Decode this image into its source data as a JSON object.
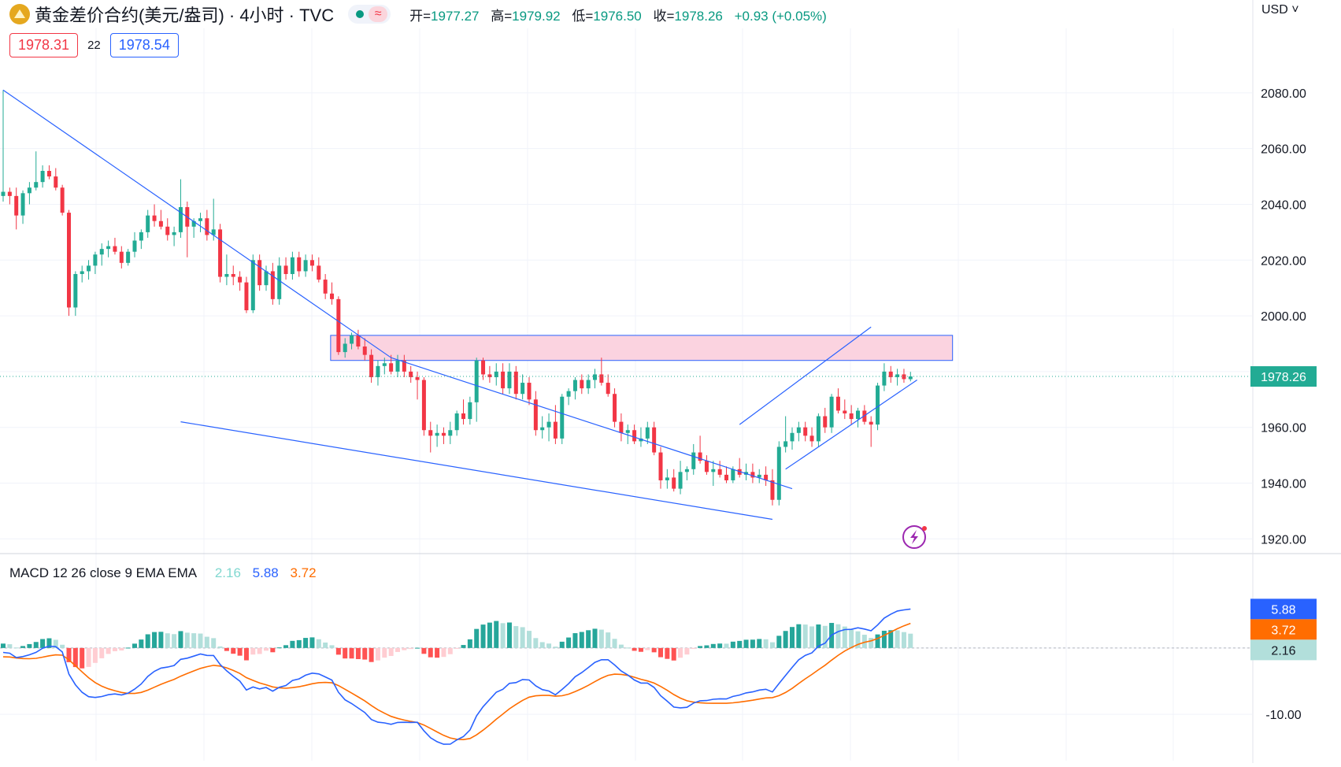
{
  "header": {
    "symbol_title": "黄金差价合约(美元/盎司) · 4小时 · TVC",
    "wave_glyph": "≈",
    "ohlc": [
      {
        "key": "开=",
        "value": "1977.27"
      },
      {
        "key": "高=",
        "value": "1979.92"
      },
      {
        "key": "低=",
        "value": "1976.50"
      },
      {
        "key": "收=",
        "value": "1978.26"
      },
      {
        "key": "",
        "value": "+0.93 (+0.05%)"
      }
    ],
    "sell_price": "1978.31",
    "spread": "22",
    "buy_price": "1978.54",
    "currency": "USD ˅"
  },
  "colors": {
    "up": "#22ab94",
    "down": "#f23645",
    "trendline": "#2962ff",
    "zone_fill": "#fbd3e0",
    "macd_line": "#2962ff",
    "signal_line": "#ff6d00",
    "hist_up_strong": "#26a69a",
    "hist_up_weak": "#b2dfdb",
    "hist_down_strong": "#ff5252",
    "hist_down_weak": "#ffcdd2"
  },
  "chart_data": [
    {
      "type": "candlestick",
      "title": "黄金差价合约(美元/盎司)",
      "interval": "4小时",
      "grid": true,
      "ylim": [
        1915,
        2102
      ],
      "y_ticks": [
        "2080.00",
        "2060.00",
        "2040.00",
        "2020.00",
        "2000.00",
        "1980.00",
        "1960.00",
        "1940.00",
        "1920.00"
      ],
      "y_tick_values": [
        2080,
        2060,
        2040,
        2020,
        2000,
        1980,
        1960,
        1940,
        1920
      ],
      "last_price": 1978.26,
      "last_price_label": "1978.26",
      "candles": [
        [
          2043.0,
          2081.0,
          2041.0,
          2044.5
        ],
        [
          2044.5,
          2046.0,
          2040.0,
          2043.0
        ],
        [
          2043.0,
          2046.0,
          2031.0,
          2036.0
        ],
        [
          2036.0,
          2045.0,
          2033.0,
          2044.0
        ],
        [
          2044.0,
          2048.0,
          2040.0,
          2046.0
        ],
        [
          2046.0,
          2059.0,
          2045.0,
          2048.0
        ],
        [
          2048.0,
          2054.0,
          2046.0,
          2052.0
        ],
        [
          2052.0,
          2054.0,
          2049.0,
          2050.0
        ],
        [
          2050.0,
          2053.0,
          2045.0,
          2046.0
        ],
        [
          2046.0,
          2047.0,
          2036.0,
          2037.0
        ],
        [
          2037.0,
          2038.0,
          2000.0,
          2003.0
        ],
        [
          2003.0,
          2016.0,
          2000.0,
          2015.0
        ],
        [
          2015.0,
          2018.0,
          2012.0,
          2016.0
        ],
        [
          2016.0,
          2020.0,
          2013.0,
          2018.0
        ],
        [
          2018.0,
          2023.0,
          2015.0,
          2022.0
        ],
        [
          2022.0,
          2026.0,
          2018.0,
          2024.0
        ],
        [
          2024.0,
          2027.0,
          2021.0,
          2025.0
        ],
        [
          2025.0,
          2028.0,
          2022.0,
          2023.0
        ],
        [
          2023.0,
          2025.0,
          2017.0,
          2019.0
        ],
        [
          2019.0,
          2024.0,
          2018.0,
          2023.0
        ],
        [
          2023.0,
          2030.0,
          2021.0,
          2027.0
        ],
        [
          2027.0,
          2031.0,
          2024.0,
          2030.0
        ],
        [
          2030.0,
          2038.0,
          2028.0,
          2036.0
        ],
        [
          2036.0,
          2040.0,
          2032.0,
          2034.0
        ],
        [
          2034.0,
          2038.0,
          2031.0,
          2032.0
        ],
        [
          2032.0,
          2035.0,
          2027.0,
          2029.0
        ],
        [
          2029.0,
          2032.0,
          2025.0,
          2030.0
        ],
        [
          2030.0,
          2049.0,
          2028.0,
          2039.0
        ],
        [
          2039.0,
          2041.0,
          2021.0,
          2032.0
        ],
        [
          2032.0,
          2035.0,
          2028.0,
          2034.0
        ],
        [
          2034.0,
          2037.0,
          2030.0,
          2035.0
        ],
        [
          2035.0,
          2038.0,
          2027.0,
          2029.0
        ],
        [
          2029.0,
          2042.0,
          2027.0,
          2031.0
        ],
        [
          2031.0,
          2033.0,
          2012.0,
          2014.0
        ],
        [
          2014.0,
          2022.0,
          2011.0,
          2015.0
        ],
        [
          2015.0,
          2018.0,
          2011.0,
          2014.0
        ],
        [
          2014.0,
          2016.0,
          2009.0,
          2012.0
        ],
        [
          2012.0,
          2014.0,
          2001.0,
          2002.0
        ],
        [
          2002.0,
          2022.0,
          2001.0,
          2020.0
        ],
        [
          2020.0,
          2022.0,
          2009.0,
          2011.0
        ],
        [
          2011.0,
          2018.0,
          2009.0,
          2016.0
        ],
        [
          2016.0,
          2019.0,
          2004.0,
          2006.0
        ],
        [
          2006.0,
          2021.0,
          2004.0,
          2018.0
        ],
        [
          2018.0,
          2021.0,
          2013.0,
          2015.0
        ],
        [
          2015.0,
          2023.0,
          2013.0,
          2021.0
        ],
        [
          2021.0,
          2023.0,
          2014.0,
          2016.0
        ],
        [
          2016.0,
          2022.0,
          2014.0,
          2020.0
        ],
        [
          2020.0,
          2022.0,
          2016.0,
          2018.0
        ],
        [
          2018.0,
          2021.0,
          2012.0,
          2013.0
        ],
        [
          2013.0,
          2015.0,
          2006.0,
          2008.0
        ],
        [
          2008.0,
          2012.0,
          2004.0,
          2006.0
        ],
        [
          2006.0,
          2007.0,
          1986.0,
          1987.0
        ],
        [
          1987.0,
          1992.0,
          1985.0,
          1990.0
        ],
        [
          1990.0,
          1994.0,
          1988.0,
          1993.0
        ],
        [
          1993.0,
          1995.0,
          1988.0,
          1989.0
        ],
        [
          1989.0,
          1992.0,
          1984.0,
          1986.0
        ],
        [
          1986.0,
          1988.0,
          1976.0,
          1978.0
        ],
        [
          1978.0,
          1984.0,
          1975.0,
          1982.0
        ],
        [
          1982.0,
          1985.0,
          1979.0,
          1983.0
        ],
        [
          1983.0,
          1986.0,
          1979.0,
          1980.0
        ],
        [
          1980.0,
          1986.0,
          1978.0,
          1984.0
        ],
        [
          1984.0,
          1986.0,
          1978.0,
          1980.0
        ],
        [
          1980.0,
          1982.0,
          1976.0,
          1978.0
        ],
        [
          1978.0,
          1980.0,
          1970.0,
          1977.0
        ],
        [
          1977.0,
          1978.0,
          1957.0,
          1959.0
        ],
        [
          1959.0,
          1962.0,
          1951.0,
          1957.0
        ],
        [
          1957.0,
          1961.0,
          1953.0,
          1958.0
        ],
        [
          1958.0,
          1960.0,
          1954.0,
          1957.0
        ],
        [
          1957.0,
          1962.0,
          1954.0,
          1959.0
        ],
        [
          1959.0,
          1966.0,
          1957.0,
          1965.0
        ],
        [
          1965.0,
          1970.0,
          1961.0,
          1963.0
        ],
        [
          1963.0,
          1971.0,
          1961.0,
          1969.0
        ],
        [
          1969.0,
          1985.0,
          1962.0,
          1984.0
        ],
        [
          1984.0,
          1985.0,
          1977.0,
          1979.0
        ],
        [
          1979.0,
          1982.0,
          1976.0,
          1978.0
        ],
        [
          1978.0,
          1983.0,
          1975.0,
          1980.0
        ],
        [
          1980.0,
          1983.0,
          1972.0,
          1974.0
        ],
        [
          1974.0,
          1983.0,
          1972.0,
          1980.0
        ],
        [
          1980.0,
          1982.0,
          1970.0,
          1972.0
        ],
        [
          1972.0,
          1979.0,
          1970.0,
          1976.0
        ],
        [
          1976.0,
          1978.0,
          1968.0,
          1970.0
        ],
        [
          1970.0,
          1973.0,
          1957.0,
          1959.0
        ],
        [
          1959.0,
          1964.0,
          1956.0,
          1960.0
        ],
        [
          1960.0,
          1965.0,
          1955.0,
          1962.0
        ],
        [
          1962.0,
          1968.0,
          1954.0,
          1956.0
        ],
        [
          1956.0,
          1972.0,
          1954.0,
          1971.0
        ],
        [
          1971.0,
          1974.0,
          1968.0,
          1973.0
        ],
        [
          1973.0,
          1978.0,
          1970.0,
          1977.0
        ],
        [
          1977.0,
          1979.0,
          1972.0,
          1974.0
        ],
        [
          1974.0,
          1979.0,
          1972.0,
          1977.0
        ],
        [
          1977.0,
          1981.0,
          1974.0,
          1979.0
        ],
        [
          1979.0,
          1985.0,
          1975.0,
          1976.0
        ],
        [
          1976.0,
          1979.0,
          1971.0,
          1972.0
        ],
        [
          1972.0,
          1974.0,
          1960.0,
          1962.0
        ],
        [
          1962.0,
          1965.0,
          1955.0,
          1958.0
        ],
        [
          1958.0,
          1961.0,
          1954.0,
          1959.0
        ],
        [
          1959.0,
          1961.0,
          1954.0,
          1955.0
        ],
        [
          1955.0,
          1960.0,
          1953.0,
          1956.0
        ],
        [
          1956.0,
          1962.0,
          1954.0,
          1960.0
        ],
        [
          1960.0,
          1962.0,
          1950.0,
          1951.0
        ],
        [
          1951.0,
          1953.0,
          1938.0,
          1941.0
        ],
        [
          1941.0,
          1945.0,
          1938.0,
          1942.0
        ],
        [
          1942.0,
          1945.0,
          1937.0,
          1938.0
        ],
        [
          1938.0,
          1948.0,
          1936.0,
          1944.0
        ],
        [
          1944.0,
          1946.0,
          1941.0,
          1945.0
        ],
        [
          1945.0,
          1954.0,
          1943.0,
          1951.0
        ],
        [
          1951.0,
          1957.0,
          1947.0,
          1948.0
        ],
        [
          1948.0,
          1950.0,
          1943.0,
          1944.0
        ],
        [
          1944.0,
          1948.0,
          1939.0,
          1945.0
        ],
        [
          1945.0,
          1948.0,
          1942.0,
          1943.0
        ],
        [
          1943.0,
          1946.0,
          1940.0,
          1941.0
        ],
        [
          1941.0,
          1946.0,
          1940.0,
          1945.0
        ],
        [
          1945.0,
          1949.0,
          1942.0,
          1943.0
        ],
        [
          1943.0,
          1947.0,
          1941.0,
          1944.0
        ],
        [
          1944.0,
          1947.0,
          1940.0,
          1942.0
        ],
        [
          1942.0,
          1945.0,
          1940.0,
          1943.0
        ],
        [
          1943.0,
          1946.0,
          1939.0,
          1941.0
        ],
        [
          1941.0,
          1945.0,
          1932.0,
          1934.0
        ],
        [
          1934.0,
          1955.0,
          1932.0,
          1953.0
        ],
        [
          1953.0,
          1964.0,
          1951.0,
          1955.0
        ],
        [
          1955.0,
          1960.0,
          1952.0,
          1958.0
        ],
        [
          1958.0,
          1962.0,
          1955.0,
          1960.0
        ],
        [
          1960.0,
          1962.0,
          1955.0,
          1957.0
        ],
        [
          1957.0,
          1960.0,
          1953.0,
          1955.0
        ],
        [
          1955.0,
          1965.0,
          1953.0,
          1964.0
        ],
        [
          1964.0,
          1967.0,
          1958.0,
          1960.0
        ],
        [
          1960.0,
          1972.0,
          1958.0,
          1971.0
        ],
        [
          1971.0,
          1974.0,
          1965.0,
          1966.0
        ],
        [
          1966.0,
          1970.0,
          1963.0,
          1965.0
        ],
        [
          1965.0,
          1968.0,
          1961.0,
          1963.0
        ],
        [
          1963.0,
          1967.0,
          1960.0,
          1966.0
        ],
        [
          1966.0,
          1968.0,
          1961.0,
          1962.0
        ],
        [
          1962.0,
          1964.0,
          1953.0,
          1961.0
        ],
        [
          1961.0,
          1976.0,
          1959.0,
          1975.0
        ],
        [
          1975.0,
          1983.0,
          1973.0,
          1980.0
        ],
        [
          1980.0,
          1982.0,
          1976.0,
          1978.0
        ],
        [
          1978.0,
          1981.0,
          1975.0,
          1979.0
        ],
        [
          1979.0,
          1981.0,
          1976.0,
          1977.3
        ],
        [
          1977.27,
          1979.92,
          1976.5,
          1978.26
        ]
      ],
      "annotations": {
        "resistance_zone": [
          1984.0,
          1993.0
        ],
        "trendlines": [
          {
            "from": [
              0,
              2081.0
            ],
            "to": [
              59,
              1985.0
            ]
          },
          {
            "from": [
              59,
              1985.0
            ],
            "to": [
              120,
              1938.0
            ]
          },
          {
            "from": [
              27,
              1962.0
            ],
            "to": [
              117,
              1927.0
            ]
          },
          {
            "from": [
              112,
              1961.0
            ],
            "to": [
              132,
              1996.0
            ]
          },
          {
            "from": [
              119,
              1945.0
            ],
            "to": [
              139,
              1977.0
            ]
          }
        ]
      }
    },
    {
      "type": "macd",
      "legend": "MACD 12 26 close 9 EMA EMA",
      "histogram_label": "2.16",
      "macd_label": "5.88",
      "signal_label": "3.72",
      "histogram": 2.16,
      "macd": 5.88,
      "signal": 3.72,
      "ylim": [
        -17,
        14
      ],
      "y_ticks": [
        "0.00",
        "-10.00"
      ],
      "y_tick_values": [
        0,
        -10
      ]
    }
  ]
}
